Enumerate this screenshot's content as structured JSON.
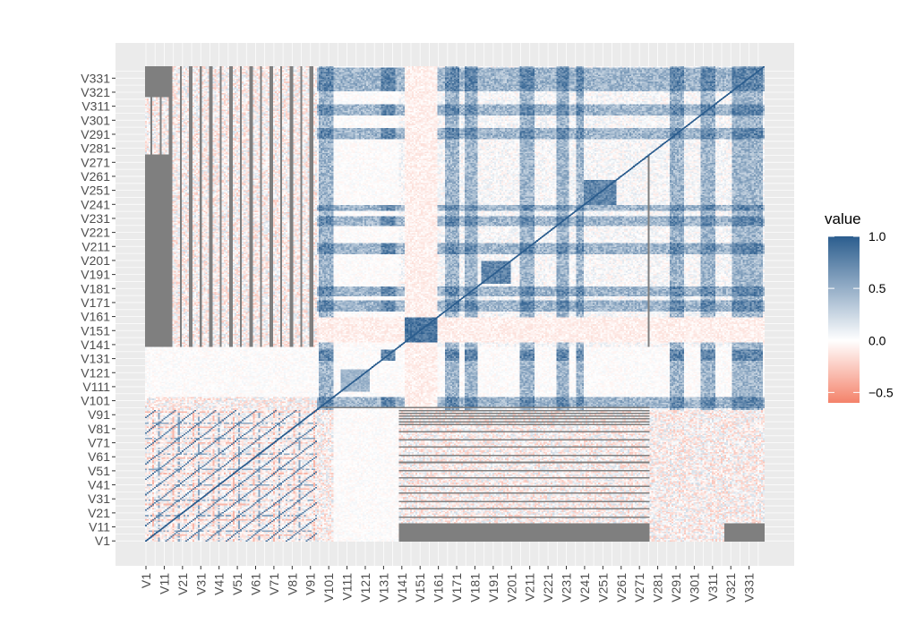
{
  "chart_data": {
    "type": "heatmap",
    "title": "",
    "xlabel": "",
    "ylabel": "",
    "variable_count": 339,
    "variable_prefix": "V",
    "x_tick_labels": [
      "V1",
      "V11",
      "V21",
      "V31",
      "V41",
      "V51",
      "V61",
      "V71",
      "V81",
      "V91",
      "V101",
      "V111",
      "V121",
      "V131",
      "V141",
      "V151",
      "V161",
      "V171",
      "V181",
      "V191",
      "V201",
      "V211",
      "V221",
      "V231",
      "V241",
      "V251",
      "V261",
      "V271",
      "V281",
      "V291",
      "V301",
      "V311",
      "V321",
      "V331"
    ],
    "y_tick_labels": [
      "V1",
      "V11",
      "V21",
      "V31",
      "V41",
      "V51",
      "V61",
      "V71",
      "V81",
      "V91",
      "V101",
      "V111",
      "V121",
      "V131",
      "V141",
      "V151",
      "V161",
      "V171",
      "V181",
      "V191",
      "V201",
      "V211",
      "V221",
      "V231",
      "V241",
      "V251",
      "V261",
      "V271",
      "V281",
      "V291",
      "V301",
      "V311",
      "V321",
      "V331"
    ],
    "value_range": [
      -0.6,
      1.0
    ],
    "missing_color": "#7f7f7f",
    "panel_background": "#ebebeb",
    "grid": true,
    "legend": {
      "title": "value",
      "placement": "right",
      "breaks": [
        1.0,
        0.5,
        0.0,
        -0.5
      ],
      "break_labels": [
        "1.0",
        "0.5",
        "0.0",
        "−0.5"
      ],
      "high_color": "#2b5d8e",
      "mid_color": "#ffffff",
      "low_color": "#f4826a"
    },
    "blocks": [
      {
        "name": "diagonal",
        "value": 1.0
      },
      {
        "name": "V1-V91 inner block",
        "range": [
          1,
          94
        ],
        "pattern": "periodic",
        "period": 11,
        "value": 0.55
      },
      {
        "name": "V101-V139 rows",
        "range": [
          95,
          139
        ],
        "value": 0.05
      },
      {
        "name": "V111-V122 block",
        "range": [
          108,
          123
        ],
        "value": 0.35
      },
      {
        "name": "V143-V160 block",
        "range": [
          143,
          160
        ],
        "value": 0.85
      },
      {
        "name": "V165-V338 general",
        "range": [
          165,
          338
        ],
        "value": 0.6
      },
      {
        "name": "missing V1-V13 x V139-V339",
        "value": null
      },
      {
        "name": "missing V142-V276 x V1-V13",
        "value": null
      },
      {
        "name": "missing V140-V290 x V96-V280",
        "value": null
      }
    ]
  }
}
